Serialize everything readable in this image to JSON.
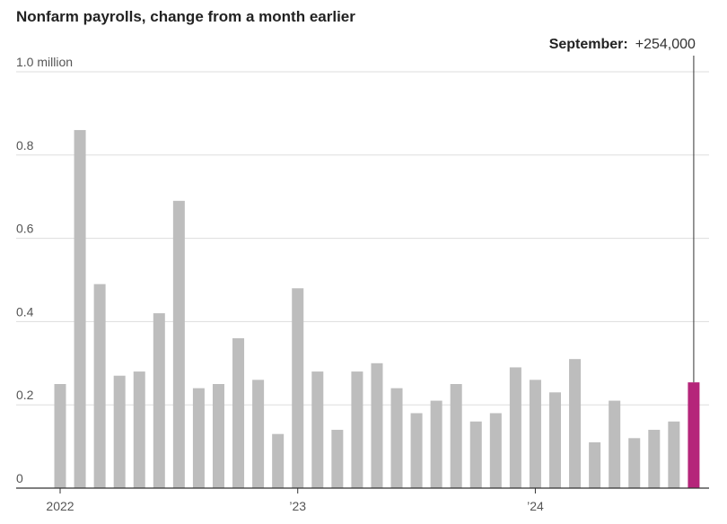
{
  "chart_data": {
    "type": "bar",
    "title": "Nonfarm payrolls, change from a month earlier",
    "xlabel": "",
    "ylabel": "",
    "ylim": [
      0,
      1.0
    ],
    "y_ticks": [
      0,
      0.2,
      0.4,
      0.6,
      0.8,
      1.0
    ],
    "y_tick_labels": [
      "0",
      "0.2",
      "0.4",
      "0.6",
      "0.8",
      "1.0 million"
    ],
    "x_tick_labels": [
      {
        "index": 0,
        "label": "2022"
      },
      {
        "index": 12,
        "label": "’23"
      },
      {
        "index": 24,
        "label": "’24"
      }
    ],
    "grid": true,
    "values": [
      0.25,
      0.86,
      0.49,
      0.27,
      0.28,
      0.42,
      0.69,
      0.24,
      0.25,
      0.36,
      0.26,
      0.13,
      0.48,
      0.28,
      0.14,
      0.28,
      0.3,
      0.24,
      0.18,
      0.21,
      0.25,
      0.16,
      0.18,
      0.29,
      0.26,
      0.23,
      0.31,
      0.11,
      0.21,
      0.12,
      0.14,
      0.16,
      0.254
    ],
    "highlight_index": 32,
    "bar_color": "#bdbdbd",
    "highlight_color": "#b5257a",
    "annotation": {
      "label": "September:",
      "value": "+254,000"
    }
  }
}
